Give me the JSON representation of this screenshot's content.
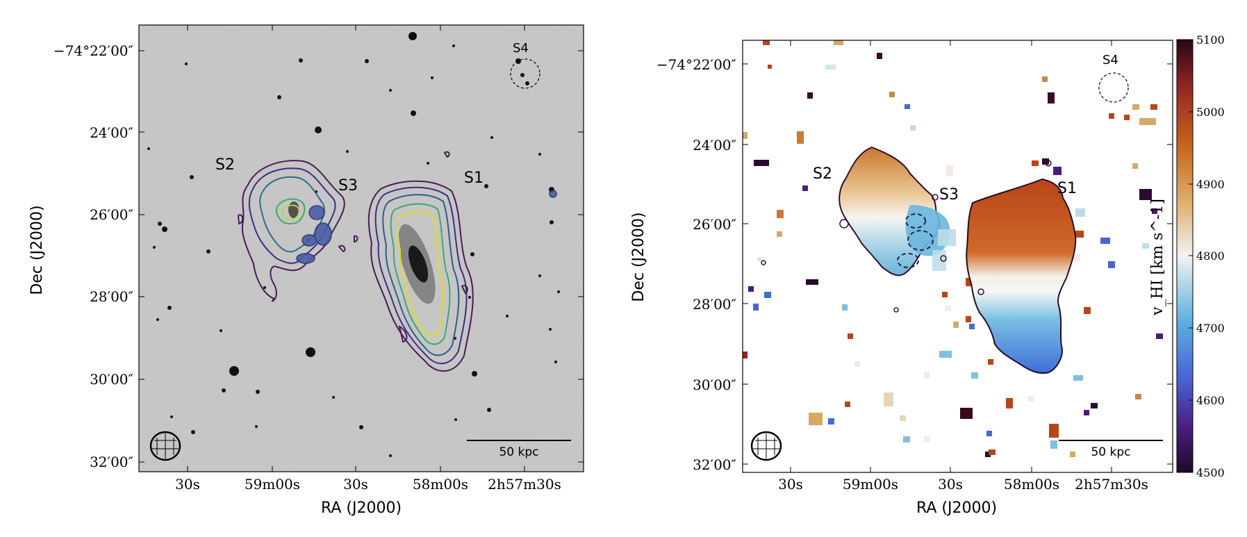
{
  "left_panel": {
    "y_ticks": [
      "−74°22′00″",
      "24′00″",
      "26′00″",
      "28′00″",
      "30′00″",
      "32′00″"
    ],
    "x_ticks": [
      "30s",
      "59m00s",
      "30s",
      "58m00s",
      "2h57m30s"
    ],
    "xlabel": "RA (J2000)",
    "ylabel": "Dec (J2000)",
    "labels": {
      "s1": "S1",
      "s2": "S2",
      "s3": "S3",
      "s4": "S4"
    },
    "scalebar": "50 kpc"
  },
  "right_panel": {
    "y_ticks": [
      "−74°22′00″",
      "24′00″",
      "26′00″",
      "28′00″",
      "30′00″",
      "32′00″"
    ],
    "x_ticks": [
      "30s",
      "59m00s",
      "30s",
      "58m00s",
      "2h57m30s"
    ],
    "xlabel": "RA (J2000)",
    "ylabel": "Dec (J2000)",
    "labels": {
      "s1": "S1",
      "s2": "S2",
      "s3": "S3",
      "s4": "S4"
    },
    "scalebar": "50 kpc",
    "colorbar": {
      "label": "v_HI [km s^-1]",
      "ticks": [
        "5100",
        "5000",
        "4900",
        "4800",
        "4700",
        "4600",
        "4500"
      ],
      "range": [
        4500,
        5100
      ],
      "colors": [
        "#2a0a2e",
        "#5b2a8a",
        "#3f6fd6",
        "#7fc0e0",
        "#f4f4f4",
        "#d9a860",
        "#c05a1c",
        "#7a1030",
        "#2a0a1e"
      ]
    }
  },
  "chart_data": [
    {
      "type": "image",
      "title": "",
      "xlabel": "RA (J2000)",
      "ylabel": "Dec (J2000)",
      "x_tick_labels": [
        "30s",
        "59m00s",
        "30s",
        "58m00s",
        "2h57m30s"
      ],
      "y_tick_labels": [
        "-74°22'00\"",
        "24'00\"",
        "26'00\"",
        "28'00\"",
        "30'00\"",
        "32'00\""
      ],
      "annotations": [
        "S1",
        "S2",
        "S3",
        "S4",
        "50 kpc"
      ]
    },
    {
      "type": "heatmap",
      "title": "",
      "xlabel": "RA (J2000)",
      "ylabel": "Dec (J2000)",
      "x_tick_labels": [
        "30s",
        "59m00s",
        "30s",
        "58m00s",
        "2h57m30s"
      ],
      "y_tick_labels": [
        "-74°22'00\"",
        "24'00\"",
        "26'00\"",
        "28'00\"",
        "30'00\"",
        "32'00\""
      ],
      "colorbar_label": "v_HI [km s^-1]",
      "colorbar_ticks": [
        5100,
        5000,
        4900,
        4800,
        4700,
        4600,
        4500
      ],
      "colorbar_range": [
        4500,
        5100
      ],
      "annotations": [
        "S1",
        "S2",
        "S3",
        "S4",
        "50 kpc"
      ]
    }
  ]
}
